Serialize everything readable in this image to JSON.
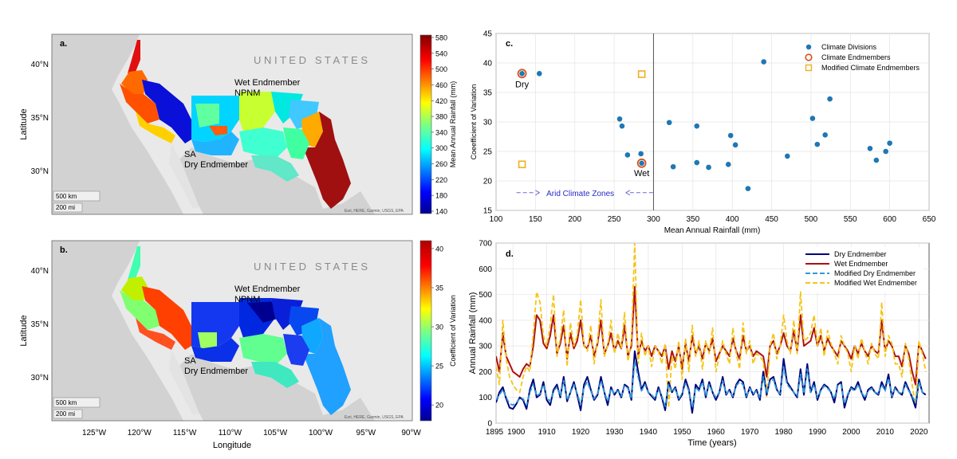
{
  "colors": {
    "jet": [
      "#00008f",
      "#0000ff",
      "#0080ff",
      "#00ffff",
      "#80ff80",
      "#ffff00",
      "#ff8000",
      "#ff0000",
      "#800000"
    ],
    "scatter_dot": "#1f77b4",
    "endmember_ring": "#d95319",
    "modified_square": "#edb120",
    "dry_line": "#00007a",
    "wet_line": "#b01010",
    "mod_dry_line": "#2e9ad8",
    "mod_wet_line": "#f5c518",
    "ocean": "#d2d2d2",
    "land": "#e8e8e8"
  },
  "maps": {
    "panel_a_label": "a.",
    "panel_b_label": "b.",
    "country_label": "U N I T E D   S T A T E S",
    "wet_label_1": "Wet Endmember",
    "wet_label_2": "NPNM",
    "dry_label_1": "SA",
    "dry_label_2": "Dry Endmember",
    "scale_km": "500 km",
    "scale_mi": "200 mi",
    "attribution": "Esri, HERE, Garmin, USGS, EPA",
    "ylabel": "Latitude",
    "xlabel": "Longitude",
    "lat_ticks": [
      "40°N",
      "35°N",
      "30°N"
    ],
    "lon_ticks": [
      "125°W",
      "120°W",
      "115°W",
      "110°W",
      "105°W",
      "100°W",
      "95°W",
      "90°W"
    ],
    "colorbar_a": {
      "label": "Mean Annual Rainfall (mm)",
      "ticks": [
        580,
        540,
        500,
        460,
        420,
        380,
        340,
        300,
        260,
        220,
        180,
        140
      ]
    },
    "colorbar_b": {
      "label": "Coefficient of Variation",
      "ticks": [
        40,
        35,
        30,
        25,
        20
      ]
    }
  },
  "chart_data": [
    {
      "type": "scatter",
      "panel": "c.",
      "xlabel": "Mean Annual Rainfall (mm)",
      "ylabel": "Coeefficient of Variation",
      "xlim": [
        100,
        650
      ],
      "ylim": [
        15,
        45
      ],
      "xticks": [
        100,
        150,
        200,
        250,
        300,
        350,
        400,
        450,
        500,
        550,
        600,
        650
      ],
      "yticks": [
        15,
        20,
        25,
        30,
        35,
        40,
        45
      ],
      "legend": [
        "Climate Divisions",
        "Climate Endmembers",
        "Modified Climate Endmembers"
      ],
      "divisions": [
        [
          133,
          38.2
        ],
        [
          155,
          38.2
        ],
        [
          257,
          30.5
        ],
        [
          260,
          29.3
        ],
        [
          267,
          24.4
        ],
        [
          284,
          24.6
        ],
        [
          285,
          23.0
        ],
        [
          320,
          29.9
        ],
        [
          325,
          22.4
        ],
        [
          355,
          29.3
        ],
        [
          355,
          23.1
        ],
        [
          370,
          22.3
        ],
        [
          395,
          22.8
        ],
        [
          398,
          27.7
        ],
        [
          404,
          26.1
        ],
        [
          420,
          18.7
        ],
        [
          440,
          40.2
        ],
        [
          470,
          24.2
        ],
        [
          502,
          30.6
        ],
        [
          508,
          26.2
        ],
        [
          518,
          27.8
        ],
        [
          524,
          33.9
        ],
        [
          575,
          25.5
        ],
        [
          583,
          23.5
        ],
        [
          595,
          25.0
        ],
        [
          600,
          26.4
        ]
      ],
      "endmembers": [
        [
          133,
          38.2
        ],
        [
          285,
          23.0
        ]
      ],
      "modified": [
        [
          133,
          22.8
        ],
        [
          285,
          38.1
        ]
      ],
      "dry_label": "Dry",
      "wet_label": "Wet",
      "threshold_x": 300,
      "arid_label": "Arid Climate Zones",
      "arid_y": 18
    },
    {
      "type": "line",
      "panel": "d.",
      "xlabel": "Time (years)",
      "ylabel": "Annual Rainfall (mm)",
      "xlim": [
        1895,
        2023
      ],
      "ylim": [
        0,
        700
      ],
      "xtick_labels": [
        "1895",
        "1900",
        "1910",
        "1920",
        "1930",
        "1940",
        "1950",
        "1960",
        "1970",
        "1980",
        "1990",
        "2000",
        "2010",
        "2020"
      ],
      "yticks": [
        0,
        100,
        200,
        300,
        400,
        500,
        600,
        700
      ],
      "start_year": 1895,
      "series": [
        {
          "name": "Dry Endmember",
          "values": [
            80,
            120,
            140,
            95,
            60,
            55,
            75,
            100,
            90,
            55,
            130,
            170,
            100,
            110,
            160,
            90,
            70,
            130,
            150,
            100,
            180,
            85,
            120,
            160,
            110,
            50,
            150,
            180,
            130,
            90,
            110,
            180,
            120,
            70,
            140,
            110,
            130,
            100,
            150,
            140,
            90,
            280,
            200,
            130,
            160,
            120,
            105,
            90,
            140,
            100,
            50,
            160,
            120,
            140,
            90,
            110,
            170,
            130,
            40,
            150,
            130,
            170,
            100,
            160,
            120,
            90,
            120,
            180,
            110,
            130,
            100,
            150,
            170,
            160,
            100,
            140,
            110,
            130,
            90,
            200,
            110,
            170,
            180,
            130,
            110,
            250,
            160,
            140,
            120,
            100,
            210,
            110,
            230,
            120,
            160,
            90,
            130,
            150,
            140,
            120,
            80,
            150,
            160,
            60,
            110,
            140,
            130,
            160,
            120,
            90,
            130,
            140,
            120,
            110,
            160,
            130,
            190,
            100,
            140,
            120,
            110,
            160,
            130,
            100,
            60,
            170,
            120,
            110
          ]
        },
        {
          "name": "Wet Endmember",
          "values": [
            260,
            200,
            350,
            260,
            230,
            200,
            190,
            180,
            210,
            230,
            220,
            300,
            420,
            400,
            310,
            290,
            340,
            420,
            270,
            310,
            380,
            250,
            350,
            290,
            320,
            400,
            300,
            290,
            340,
            260,
            310,
            400,
            270,
            300,
            350,
            280,
            320,
            290,
            380,
            260,
            300,
            530,
            260,
            320,
            280,
            300,
            260,
            300,
            280,
            260,
            300,
            210,
            280,
            240,
            300,
            210,
            310,
            240,
            340,
            270,
            300,
            250,
            310,
            280,
            330,
            240,
            270,
            300,
            280,
            260,
            330,
            280,
            250,
            340,
            280,
            300,
            260,
            280,
            270,
            260,
            180,
            300,
            320,
            270,
            300,
            350,
            300,
            280,
            360,
            280,
            420,
            300,
            310,
            320,
            370,
            300,
            340,
            280,
            330,
            300,
            280,
            260,
            320,
            300,
            280,
            250,
            300,
            270,
            310,
            280,
            260,
            300,
            280,
            270,
            400,
            280,
            320,
            300,
            260,
            260,
            220,
            300,
            270,
            200,
            150,
            310,
            280,
            250
          ]
        },
        {
          "name": "Modified Dry Endmember",
          "values": [
            90,
            110,
            130,
            100,
            75,
            70,
            80,
            95,
            95,
            70,
            120,
            150,
            105,
            115,
            150,
            100,
            85,
            125,
            140,
            105,
            165,
            90,
            120,
            150,
            115,
            70,
            140,
            160,
            125,
            95,
            115,
            165,
            120,
            85,
            135,
            115,
            125,
            105,
            145,
            135,
            95,
            240,
            180,
            125,
            150,
            120,
            110,
            95,
            130,
            105,
            65,
            150,
            120,
            135,
            95,
            115,
            155,
            125,
            60,
            140,
            125,
            160,
            105,
            150,
            120,
            100,
            120,
            165,
            115,
            125,
            105,
            145,
            160,
            150,
            105,
            135,
            115,
            125,
            100,
            180,
            115,
            160,
            170,
            125,
            115,
            220,
            150,
            135,
            120,
            105,
            190,
            115,
            210,
            120,
            150,
            100,
            125,
            145,
            135,
            120,
            95,
            145,
            150,
            75,
            115,
            135,
            125,
            150,
            120,
            100,
            125,
            135,
            120,
            115,
            150,
            125,
            175,
            105,
            135,
            120,
            115,
            150,
            125,
            105,
            80,
            160,
            120,
            115
          ]
        },
        {
          "name": "Modified Wet Endmember",
          "values": [
            220,
            150,
            400,
            250,
            180,
            150,
            130,
            120,
            180,
            220,
            200,
            350,
            510,
            470,
            340,
            300,
            380,
            500,
            260,
            330,
            440,
            220,
            390,
            300,
            340,
            480,
            300,
            280,
            380,
            230,
            320,
            480,
            260,
            300,
            400,
            270,
            350,
            290,
            430,
            240,
            320,
            700,
            230,
            350,
            260,
            300,
            220,
            300,
            280,
            230,
            310,
            60,
            260,
            210,
            320,
            170,
            330,
            200,
            380,
            260,
            320,
            210,
            320,
            270,
            370,
            200,
            260,
            320,
            270,
            230,
            370,
            270,
            210,
            390,
            270,
            320,
            230,
            270,
            260,
            240,
            100,
            300,
            350,
            250,
            300,
            420,
            320,
            270,
            400,
            270,
            510,
            320,
            330,
            350,
            420,
            300,
            370,
            260,
            360,
            310,
            270,
            230,
            340,
            300,
            270,
            200,
            300,
            250,
            330,
            280,
            230,
            310,
            270,
            250,
            470,
            260,
            340,
            310,
            230,
            230,
            180,
            310,
            250,
            150,
            60,
            320,
            270,
            200
          ]
        }
      ]
    }
  ]
}
